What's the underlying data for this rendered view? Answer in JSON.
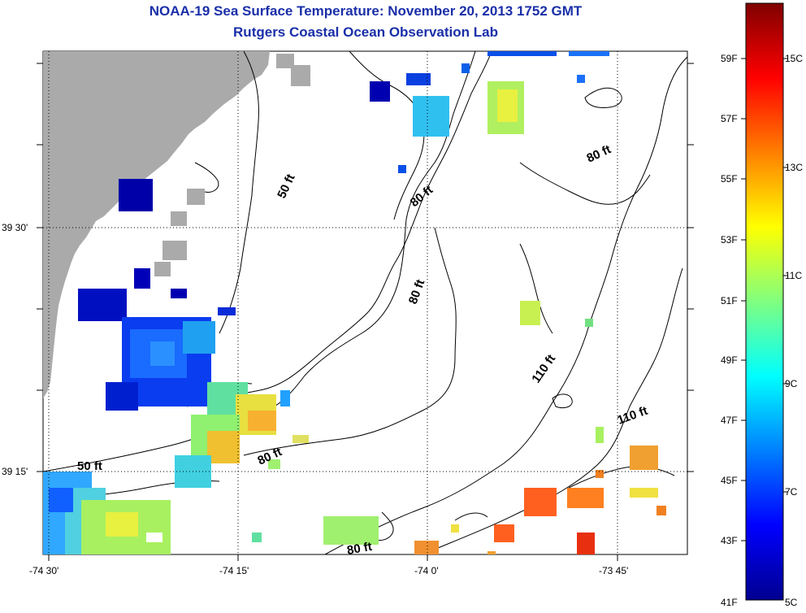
{
  "title": "NOAA-19 Sea Surface Temperature:  November 20, 2013 1752 GMT",
  "subtitle": "Rutgers Coastal Ocean Observation Lab",
  "axes": {
    "x_ticks": [
      "-74 30'",
      "-74 15'",
      "-74 0'",
      "-73 45'"
    ],
    "y_ticks": [
      "39 30'",
      "39 15'"
    ]
  },
  "contour_labels": [
    "50 ft",
    "50 ft",
    "80 ft",
    "80 ft",
    "80 ft",
    "80 ft",
    "110 ft",
    "110 ft"
  ],
  "colorbar": {
    "f_labels": [
      "59F",
      "57F",
      "55F",
      "53F",
      "51F",
      "49F",
      "47F",
      "45F",
      "43F",
      "41F"
    ],
    "c_labels": [
      "15C",
      "13C",
      "11C",
      "9C",
      "7C",
      "5C"
    ]
  },
  "colors": {
    "land": "#aaaaaa",
    "title": "#1a2fa8"
  }
}
